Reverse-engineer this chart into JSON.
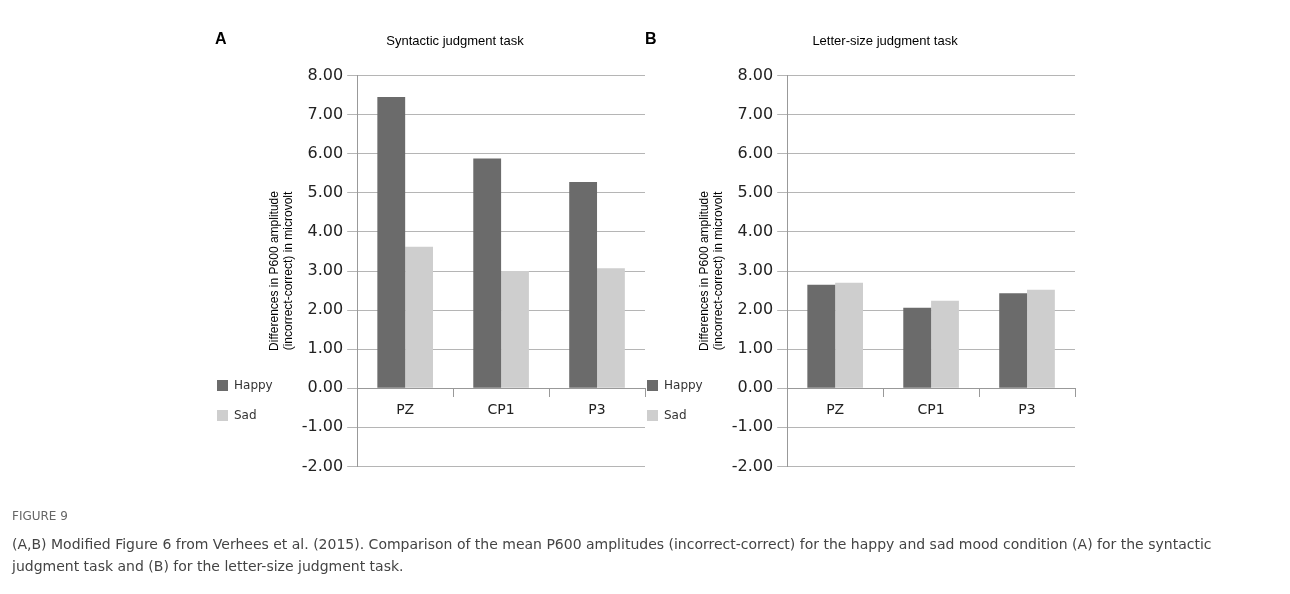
{
  "chart_data": [
    {
      "type": "bar",
      "title": "Syntactic judgment task",
      "ylabel": "Differences in P600 amplitude\n(incorrect-correct) in microvolt",
      "categories": [
        "PZ",
        "CP1",
        "P3"
      ],
      "series": [
        {
          "name": "Happy",
          "color": "#6b6b6b",
          "values": [
            7.45,
            5.88,
            5.28
          ]
        },
        {
          "name": "Sad",
          "color": "#cecece",
          "values": [
            3.62,
            3.0,
            3.07
          ]
        }
      ],
      "ylim": [
        -2,
        8
      ],
      "yticks": [
        {
          "value": -2,
          "label": "-2.00"
        },
        {
          "value": -1,
          "label": "-1.00"
        },
        {
          "value": 0,
          "label": "0.00"
        },
        {
          "value": 1,
          "label": "1.00"
        },
        {
          "value": 2,
          "label": "2.00"
        },
        {
          "value": 3,
          "label": "3.00"
        },
        {
          "value": 4,
          "label": "4.00"
        },
        {
          "value": 5,
          "label": "5.00"
        },
        {
          "value": 6,
          "label": "6.00"
        },
        {
          "value": 7,
          "label": "7.00"
        },
        {
          "value": 8,
          "label": "8.00"
        }
      ],
      "grid": "y",
      "legend": "left",
      "annotations": [
        "A",
        "FIGURE 9",
        "(A,B) Modified Figure 6 from Verhees et al. (2015). Comparison of the mean P600 amplitudes (incorrect-correct) for the happy and sad mood condition (A) for the syntactic judgment task and (B) for the letter-size judgment task."
      ]
    },
    {
      "type": "bar",
      "title": "Letter-size judgment task",
      "ylabel": "Differences in P600 amplitude\n(incorrect-correct) in microvolt",
      "categories": [
        "PZ",
        "CP1",
        "P3"
      ],
      "series": [
        {
          "name": "Happy",
          "color": "#6b6b6b",
          "values": [
            2.65,
            2.06,
            2.43
          ]
        },
        {
          "name": "Sad",
          "color": "#cecece",
          "values": [
            2.7,
            2.24,
            2.52
          ]
        }
      ],
      "ylim": [
        -2,
        8
      ],
      "yticks": [
        {
          "value": -2,
          "label": "-2.00"
        },
        {
          "value": -1,
          "label": "-1.00"
        },
        {
          "value": 0,
          "label": "0.00"
        },
        {
          "value": 1,
          "label": "1.00"
        },
        {
          "value": 2,
          "label": "2.00"
        },
        {
          "value": 3,
          "label": "3.00"
        },
        {
          "value": 4,
          "label": "4.00"
        },
        {
          "value": 5,
          "label": "5.00"
        },
        {
          "value": 6,
          "label": "6.00"
        },
        {
          "value": 7,
          "label": "7.00"
        },
        {
          "value": 8,
          "label": "8.00"
        }
      ],
      "grid": "y",
      "legend": "left",
      "annotations": [
        "B"
      ]
    }
  ]
}
